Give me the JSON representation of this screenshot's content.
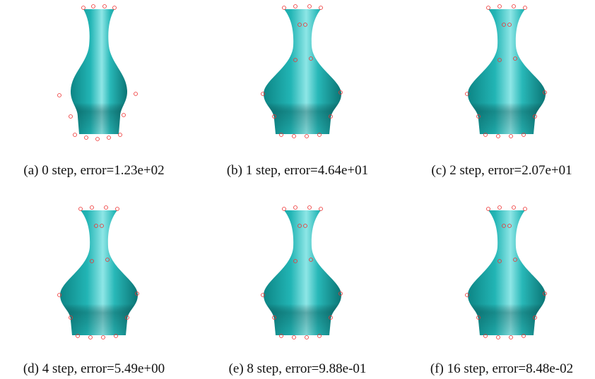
{
  "panels": [
    {
      "caption": "(a) 0 step, error=1.23e+02"
    },
    {
      "caption": "(b) 1 step, error=4.64e+01"
    },
    {
      "caption": "(c) 2 step, error=2.07e+01"
    },
    {
      "caption": "(d) 4 step, error=5.49e+00"
    },
    {
      "caption": "(e) 8 step, error=9.88e-01"
    },
    {
      "caption": "(f) 16 step, error=8.48e-02"
    }
  ]
}
